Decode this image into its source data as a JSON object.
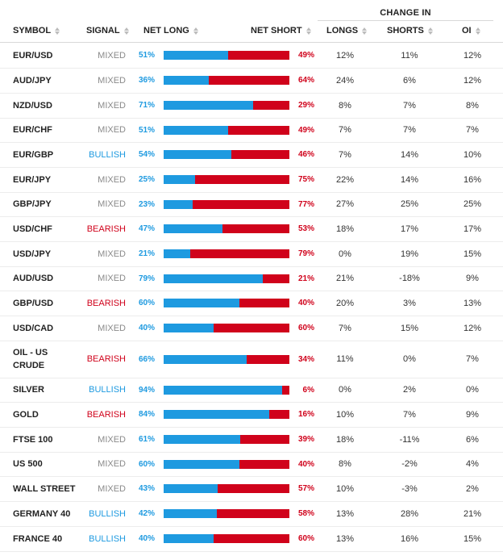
{
  "header": {
    "change_in": "CHANGE IN",
    "columns": {
      "symbol": "SYMBOL",
      "signal": "SIGNAL",
      "net_long": "NET LONG",
      "net_short": "NET SHORT",
      "longs": "LONGS",
      "shorts": "SHORTS",
      "oi": "OI"
    }
  },
  "colors": {
    "long": "#1e9ae0",
    "short": "#d0021b",
    "mixed": "#8a8a8a"
  },
  "rows": [
    {
      "symbol": "EUR/USD",
      "signal": "MIXED",
      "net_long": "51%",
      "net_short": "49%",
      "long_fraction": 0.51,
      "longs": "12%",
      "shorts": "11%",
      "oi": "12%"
    },
    {
      "symbol": "AUD/JPY",
      "signal": "MIXED",
      "net_long": "36%",
      "net_short": "64%",
      "long_fraction": 0.36,
      "longs": "24%",
      "shorts": "6%",
      "oi": "12%"
    },
    {
      "symbol": "NZD/USD",
      "signal": "MIXED",
      "net_long": "71%",
      "net_short": "29%",
      "long_fraction": 0.71,
      "longs": "8%",
      "shorts": "7%",
      "oi": "8%"
    },
    {
      "symbol": "EUR/CHF",
      "signal": "MIXED",
      "net_long": "51%",
      "net_short": "49%",
      "long_fraction": 0.51,
      "longs": "7%",
      "shorts": "7%",
      "oi": "7%"
    },
    {
      "symbol": "EUR/GBP",
      "signal": "BULLISH",
      "net_long": "54%",
      "net_short": "46%",
      "long_fraction": 0.54,
      "longs": "7%",
      "shorts": "14%",
      "oi": "10%"
    },
    {
      "symbol": "EUR/JPY",
      "signal": "MIXED",
      "net_long": "25%",
      "net_short": "75%",
      "long_fraction": 0.25,
      "longs": "22%",
      "shorts": "14%",
      "oi": "16%"
    },
    {
      "symbol": "GBP/JPY",
      "signal": "MIXED",
      "net_long": "23%",
      "net_short": "77%",
      "long_fraction": 0.23,
      "longs": "27%",
      "shorts": "25%",
      "oi": "25%"
    },
    {
      "symbol": "USD/CHF",
      "signal": "BEARISH",
      "net_long": "47%",
      "net_short": "53%",
      "long_fraction": 0.47,
      "longs": "18%",
      "shorts": "17%",
      "oi": "17%"
    },
    {
      "symbol": "USD/JPY",
      "signal": "MIXED",
      "net_long": "21%",
      "net_short": "79%",
      "long_fraction": 0.21,
      "longs": "0%",
      "shorts": "19%",
      "oi": "15%"
    },
    {
      "symbol": "AUD/USD",
      "signal": "MIXED",
      "net_long": "79%",
      "net_short": "21%",
      "long_fraction": 0.79,
      "longs": "21%",
      "shorts": "-18%",
      "oi": "9%"
    },
    {
      "symbol": "GBP/USD",
      "signal": "BEARISH",
      "net_long": "60%",
      "net_short": "40%",
      "long_fraction": 0.6,
      "longs": "20%",
      "shorts": "3%",
      "oi": "13%"
    },
    {
      "symbol": "USD/CAD",
      "signal": "MIXED",
      "net_long": "40%",
      "net_short": "60%",
      "long_fraction": 0.4,
      "longs": "7%",
      "shorts": "15%",
      "oi": "12%"
    },
    {
      "symbol": "OIL - US CRUDE",
      "signal": "BEARISH",
      "net_long": "66%",
      "net_short": "34%",
      "long_fraction": 0.66,
      "longs": "11%",
      "shorts": "0%",
      "oi": "7%"
    },
    {
      "symbol": "SILVER",
      "signal": "BULLISH",
      "net_long": "94%",
      "net_short": "6%",
      "long_fraction": 0.94,
      "longs": "0%",
      "shorts": "2%",
      "oi": "0%"
    },
    {
      "symbol": "GOLD",
      "signal": "BEARISH",
      "net_long": "84%",
      "net_short": "16%",
      "long_fraction": 0.84,
      "longs": "10%",
      "shorts": "7%",
      "oi": "9%"
    },
    {
      "symbol": "FTSE 100",
      "signal": "MIXED",
      "net_long": "61%",
      "net_short": "39%",
      "long_fraction": 0.61,
      "longs": "18%",
      "shorts": "-11%",
      "oi": "6%"
    },
    {
      "symbol": "US 500",
      "signal": "MIXED",
      "net_long": "60%",
      "net_short": "40%",
      "long_fraction": 0.6,
      "longs": "8%",
      "shorts": "-2%",
      "oi": "4%"
    },
    {
      "symbol": "WALL STREET",
      "signal": "MIXED",
      "net_long": "43%",
      "net_short": "57%",
      "long_fraction": 0.43,
      "longs": "10%",
      "shorts": "-3%",
      "oi": "2%"
    },
    {
      "symbol": "GERMANY 40",
      "signal": "BULLISH",
      "net_long": "42%",
      "net_short": "58%",
      "long_fraction": 0.42,
      "longs": "13%",
      "shorts": "28%",
      "oi": "21%"
    },
    {
      "symbol": "FRANCE 40",
      "signal": "BULLISH",
      "net_long": "40%",
      "net_short": "60%",
      "long_fraction": 0.4,
      "longs": "13%",
      "shorts": "16%",
      "oi": "15%"
    }
  ]
}
